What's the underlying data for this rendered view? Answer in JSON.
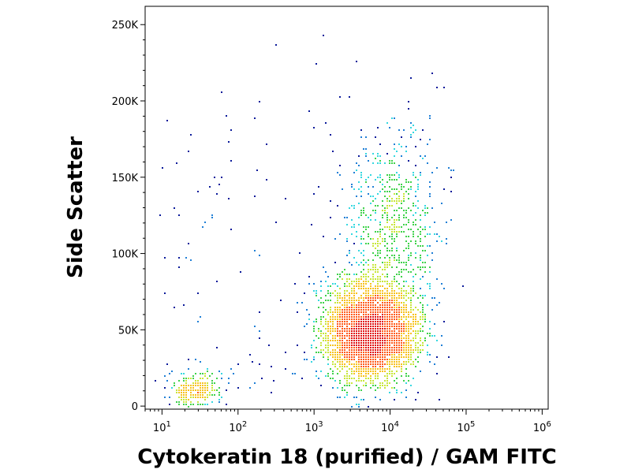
{
  "chart_data": {
    "type": "scatter",
    "style": "density-dot-plot",
    "xlabel": "Cytokeratin 18 (purified) / GAM FITC",
    "ylabel": "Side Scatter",
    "x_scale": "log",
    "xlim": [
      6,
      1200000
    ],
    "ylim": [
      -2000,
      262000
    ],
    "x_ticks": [
      {
        "value": 10,
        "base": "10",
        "exp": "1"
      },
      {
        "value": 100,
        "base": "10",
        "exp": "2"
      },
      {
        "value": 1000,
        "base": "10",
        "exp": "3"
      },
      {
        "value": 10000,
        "base": "10",
        "exp": "4"
      },
      {
        "value": 100000,
        "base": "10",
        "exp": "5"
      },
      {
        "value": 1000000,
        "base": "10",
        "exp": "6"
      }
    ],
    "y_ticks": [
      {
        "value": 0,
        "label": "0"
      },
      {
        "value": 50000,
        "label": "50K"
      },
      {
        "value": 100000,
        "label": "100K"
      },
      {
        "value": 150000,
        "label": "150K"
      },
      {
        "value": 200000,
        "label": "200K"
      },
      {
        "value": 250000,
        "label": "250K"
      }
    ],
    "density_colors": [
      "#0a1a9a",
      "#1f7fd6",
      "#35d8e0",
      "#3fd24a",
      "#c8e63a",
      "#f7c21d",
      "#ff5a1a",
      "#e01010"
    ],
    "populations": [
      {
        "x_median": 28,
        "y_median": 10000,
        "x_log_spread": 0.18,
        "y_spread": 6000,
        "count": 260
      },
      {
        "x_median": 5500,
        "y_median": 48000,
        "x_log_spread": 0.3,
        "y_spread": 16000,
        "count": 3600
      },
      {
        "x_median": 11000,
        "y_median": 115000,
        "x_log_spread": 0.3,
        "y_spread": 32000,
        "count": 700
      }
    ],
    "grid": false,
    "legend": "none"
  }
}
